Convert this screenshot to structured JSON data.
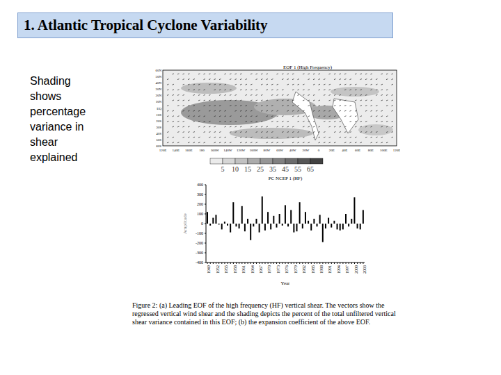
{
  "title": "1. Atlantic Tropical Cyclone Variability",
  "side_text": "Shading shows percentage variance in shear explained",
  "map": {
    "title": "EOF 1 (High Frequency)",
    "lat_labels": [
      "60N",
      "50N",
      "40N",
      "30N",
      "20N",
      "10N",
      "EQ",
      "10S",
      "20S",
      "30S",
      "40S",
      "50S",
      "60S"
    ],
    "lon_labels": [
      "120E",
      "140E",
      "160E",
      "180",
      "160W",
      "140W",
      "120W",
      "100W",
      "80W",
      "60W",
      "40W",
      "20W",
      "0",
      "20E",
      "40E",
      "60E",
      "80E",
      "100E",
      "120E"
    ],
    "colorbar_ticks": [
      5,
      10,
      15,
      25,
      35,
      45,
      55,
      65
    ]
  },
  "chart_data": {
    "type": "bar",
    "title": "PC NCEP 1 (HF)",
    "x_label": "Year",
    "y_label": "Amplitude",
    "categories": [
      "1949",
      null,
      null,
      "1952",
      null,
      null,
      "1955",
      null,
      null,
      "1958",
      null,
      null,
      "1961",
      null,
      null,
      "1964",
      null,
      null,
      "1967",
      null,
      null,
      "1970",
      null,
      null,
      "1973",
      null,
      null,
      "1976",
      null,
      null,
      "1979",
      null,
      null,
      "1982",
      null,
      null,
      "1985",
      null,
      null,
      "1988",
      null,
      null,
      "1991",
      null,
      null,
      "1994",
      null,
      null,
      "1997",
      null,
      null,
      "2000",
      null,
      null,
      "2003"
    ],
    "values": [
      120,
      -20,
      60,
      90,
      -10,
      -60,
      20,
      -20,
      -90,
      220,
      -30,
      -50,
      180,
      -80,
      50,
      -170,
      -30,
      50,
      -90,
      280,
      -70,
      120,
      -60,
      80,
      -40,
      100,
      -20,
      190,
      -30,
      140,
      -90,
      -80,
      220,
      -50,
      120,
      30,
      -70,
      50,
      -30,
      90,
      -190,
      -50,
      60,
      -40,
      30,
      -60,
      -70,
      -60,
      100,
      -30,
      50,
      270,
      -50,
      -60,
      140
    ],
    "color": "#000000",
    "ylim": [
      -400,
      400
    ],
    "yticks": [
      -400,
      -300,
      -200,
      -100,
      0,
      100,
      200,
      300,
      400
    ]
  },
  "caption": "Figure 2: (a) Leading EOF of the high frequency (HF) vertical shear. The vectors show the regressed vertical wind shear and the shading depicts the percent of the total unfiltered vertical shear variance contained in this EOF; (b) the expansion coefficient of the above EOF."
}
